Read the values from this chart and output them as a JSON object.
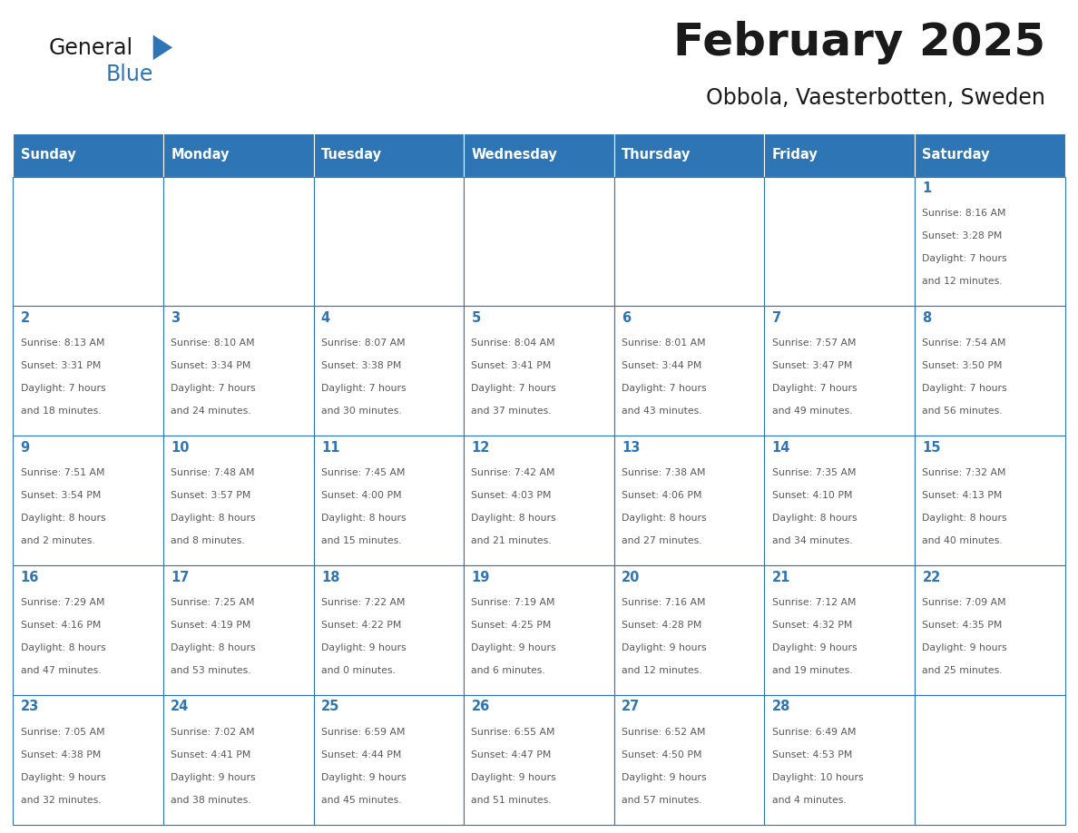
{
  "title": "February 2025",
  "subtitle": "Obbola, Vaesterbotten, Sweden",
  "header_bg": "#2E75B6",
  "header_text_color": "#FFFFFF",
  "cell_border_color": "#2E75B6",
  "day_number_color": "#2E75B6",
  "info_text_color": "#595959",
  "background_color": "#FFFFFF",
  "days_of_week": [
    "Sunday",
    "Monday",
    "Tuesday",
    "Wednesday",
    "Thursday",
    "Friday",
    "Saturday"
  ],
  "weeks": [
    [
      {
        "day": "",
        "info": ""
      },
      {
        "day": "",
        "info": ""
      },
      {
        "day": "",
        "info": ""
      },
      {
        "day": "",
        "info": ""
      },
      {
        "day": "",
        "info": ""
      },
      {
        "day": "",
        "info": ""
      },
      {
        "day": "1",
        "info": "Sunrise: 8:16 AM\nSunset: 3:28 PM\nDaylight: 7 hours\nand 12 minutes."
      }
    ],
    [
      {
        "day": "2",
        "info": "Sunrise: 8:13 AM\nSunset: 3:31 PM\nDaylight: 7 hours\nand 18 minutes."
      },
      {
        "day": "3",
        "info": "Sunrise: 8:10 AM\nSunset: 3:34 PM\nDaylight: 7 hours\nand 24 minutes."
      },
      {
        "day": "4",
        "info": "Sunrise: 8:07 AM\nSunset: 3:38 PM\nDaylight: 7 hours\nand 30 minutes."
      },
      {
        "day": "5",
        "info": "Sunrise: 8:04 AM\nSunset: 3:41 PM\nDaylight: 7 hours\nand 37 minutes."
      },
      {
        "day": "6",
        "info": "Sunrise: 8:01 AM\nSunset: 3:44 PM\nDaylight: 7 hours\nand 43 minutes."
      },
      {
        "day": "7",
        "info": "Sunrise: 7:57 AM\nSunset: 3:47 PM\nDaylight: 7 hours\nand 49 minutes."
      },
      {
        "day": "8",
        "info": "Sunrise: 7:54 AM\nSunset: 3:50 PM\nDaylight: 7 hours\nand 56 minutes."
      }
    ],
    [
      {
        "day": "9",
        "info": "Sunrise: 7:51 AM\nSunset: 3:54 PM\nDaylight: 8 hours\nand 2 minutes."
      },
      {
        "day": "10",
        "info": "Sunrise: 7:48 AM\nSunset: 3:57 PM\nDaylight: 8 hours\nand 8 minutes."
      },
      {
        "day": "11",
        "info": "Sunrise: 7:45 AM\nSunset: 4:00 PM\nDaylight: 8 hours\nand 15 minutes."
      },
      {
        "day": "12",
        "info": "Sunrise: 7:42 AM\nSunset: 4:03 PM\nDaylight: 8 hours\nand 21 minutes."
      },
      {
        "day": "13",
        "info": "Sunrise: 7:38 AM\nSunset: 4:06 PM\nDaylight: 8 hours\nand 27 minutes."
      },
      {
        "day": "14",
        "info": "Sunrise: 7:35 AM\nSunset: 4:10 PM\nDaylight: 8 hours\nand 34 minutes."
      },
      {
        "day": "15",
        "info": "Sunrise: 7:32 AM\nSunset: 4:13 PM\nDaylight: 8 hours\nand 40 minutes."
      }
    ],
    [
      {
        "day": "16",
        "info": "Sunrise: 7:29 AM\nSunset: 4:16 PM\nDaylight: 8 hours\nand 47 minutes."
      },
      {
        "day": "17",
        "info": "Sunrise: 7:25 AM\nSunset: 4:19 PM\nDaylight: 8 hours\nand 53 minutes."
      },
      {
        "day": "18",
        "info": "Sunrise: 7:22 AM\nSunset: 4:22 PM\nDaylight: 9 hours\nand 0 minutes."
      },
      {
        "day": "19",
        "info": "Sunrise: 7:19 AM\nSunset: 4:25 PM\nDaylight: 9 hours\nand 6 minutes."
      },
      {
        "day": "20",
        "info": "Sunrise: 7:16 AM\nSunset: 4:28 PM\nDaylight: 9 hours\nand 12 minutes."
      },
      {
        "day": "21",
        "info": "Sunrise: 7:12 AM\nSunset: 4:32 PM\nDaylight: 9 hours\nand 19 minutes."
      },
      {
        "day": "22",
        "info": "Sunrise: 7:09 AM\nSunset: 4:35 PM\nDaylight: 9 hours\nand 25 minutes."
      }
    ],
    [
      {
        "day": "23",
        "info": "Sunrise: 7:05 AM\nSunset: 4:38 PM\nDaylight: 9 hours\nand 32 minutes."
      },
      {
        "day": "24",
        "info": "Sunrise: 7:02 AM\nSunset: 4:41 PM\nDaylight: 9 hours\nand 38 minutes."
      },
      {
        "day": "25",
        "info": "Sunrise: 6:59 AM\nSunset: 4:44 PM\nDaylight: 9 hours\nand 45 minutes."
      },
      {
        "day": "26",
        "info": "Sunrise: 6:55 AM\nSunset: 4:47 PM\nDaylight: 9 hours\nand 51 minutes."
      },
      {
        "day": "27",
        "info": "Sunrise: 6:52 AM\nSunset: 4:50 PM\nDaylight: 9 hours\nand 57 minutes."
      },
      {
        "day": "28",
        "info": "Sunrise: 6:49 AM\nSunset: 4:53 PM\nDaylight: 10 hours\nand 4 minutes."
      },
      {
        "day": "",
        "info": ""
      }
    ]
  ],
  "logo_triangle_color": "#2E75B6",
  "logo_general_color": "#1a1a1a",
  "logo_blue_color": "#2E75B6"
}
